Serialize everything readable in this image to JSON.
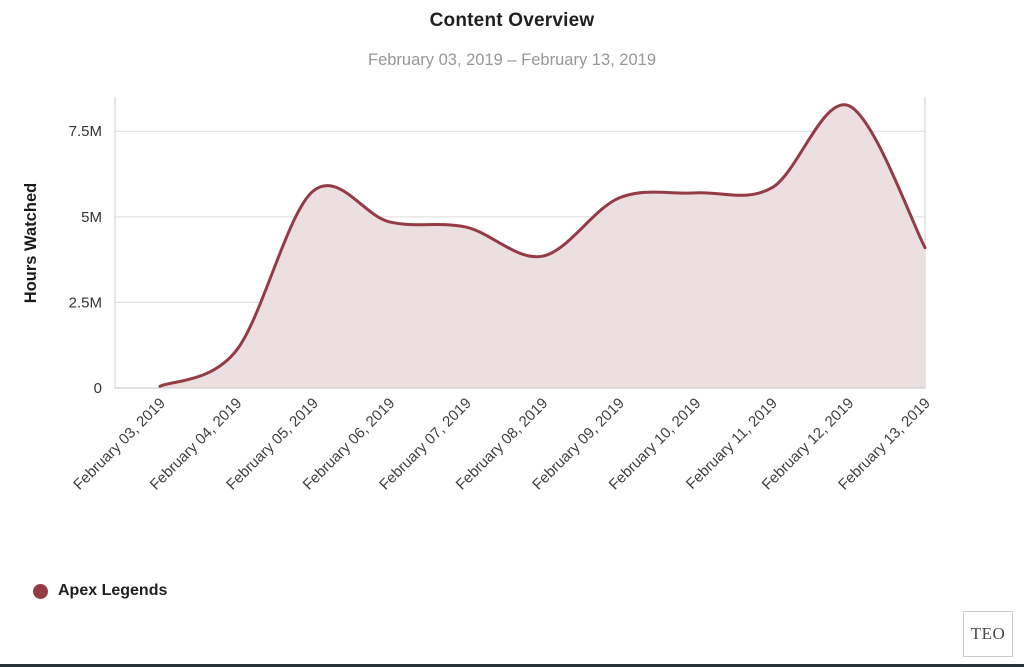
{
  "header": {
    "title": "Content Overview",
    "subtitle": "February 03, 2019 – February 13, 2019"
  },
  "chart_data": {
    "type": "area",
    "title": "Content Overview",
    "subtitle": "February 03, 2019 – February 13, 2019",
    "xlabel": "",
    "ylabel": "Hours Watched",
    "x": [
      "February 03, 2019",
      "February 04, 2019",
      "February 05, 2019",
      "February 06, 2019",
      "February 07, 2019",
      "February 08, 2019",
      "February 09, 2019",
      "February 10, 2019",
      "February 11, 2019",
      "February 12, 2019",
      "February 13, 2019"
    ],
    "series": [
      {
        "name": "Apex Legends",
        "values_millions": [
          0.05,
          1.1,
          5.75,
          4.85,
          4.7,
          3.85,
          5.55,
          5.7,
          5.85,
          8.25,
          4.1
        ]
      }
    ],
    "yticks": [
      "0",
      "2.5M",
      "5M",
      "7.5M"
    ],
    "ytick_values": [
      0,
      2.5,
      5,
      7.5
    ],
    "ylim": [
      0,
      8.5
    ],
    "grid": true,
    "legend_position": "bottom-left",
    "line_color": "#943b46",
    "fill_color": "#ecdfe0"
  },
  "legend": {
    "items": [
      {
        "label": "Apex Legends",
        "color": "#943b46"
      }
    ]
  },
  "branding": {
    "logo_text": "TEO"
  }
}
